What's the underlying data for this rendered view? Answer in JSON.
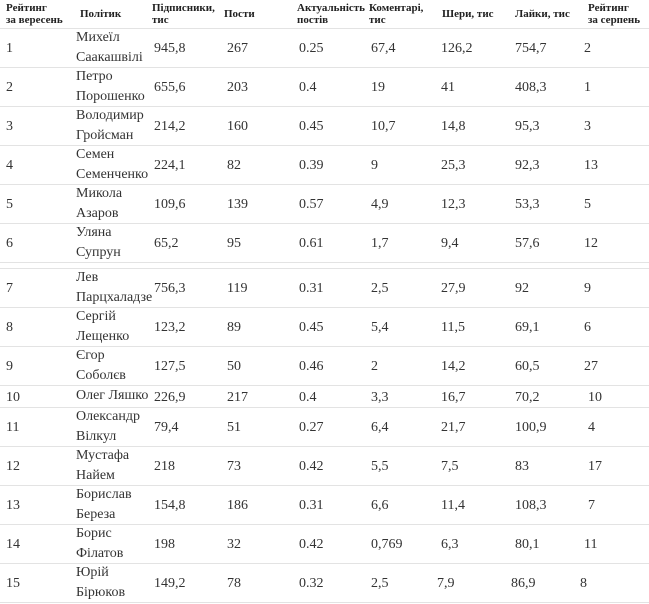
{
  "headers": {
    "rank_sep": [
      "Рейтинг",
      "за вересень"
    ],
    "politician": "Політик",
    "subscribers": [
      "Підписники,",
      "тис"
    ],
    "posts": "Пости",
    "relevance": [
      "Актуальність",
      "постів"
    ],
    "comments": [
      "Коментарі,",
      "тис"
    ],
    "shares": "Шери, тис",
    "likes": "Лайки, тис",
    "rank_aug": [
      "Рейтинг",
      "за серпень"
    ]
  },
  "rows": [
    {
      "rank": "1",
      "name": [
        "Михеїл",
        "Саакашвілі"
      ],
      "subs": "945,8",
      "posts": "267",
      "rel": "0.25",
      "comm": "67,4",
      "shares": "126,2",
      "likes": "754,7",
      "prev": "2"
    },
    {
      "rank": "2",
      "name": [
        "Петро",
        "Порошенко"
      ],
      "subs": "655,6",
      "posts": "203",
      "rel": "0.4",
      "comm": "19",
      "shares": "41",
      "likes": "408,3",
      "prev": "1"
    },
    {
      "rank": "3",
      "name": [
        "Володимир",
        "Гройсман"
      ],
      "subs": "214,2",
      "posts": "160",
      "rel": "0.45",
      "comm": "10,7",
      "shares": "14,8",
      "likes": "95,3",
      "prev": "3"
    },
    {
      "rank": "4",
      "name": [
        "Семен",
        "Семенченко"
      ],
      "subs": "224,1",
      "posts": "82",
      "rel": "0.39",
      "comm": "9",
      "shares": "25,3",
      "likes": "92,3",
      "prev": "13"
    },
    {
      "rank": "5",
      "name": [
        "Микола",
        "Азаров"
      ],
      "subs": "109,6",
      "posts": "139",
      "rel": "0.57",
      "comm": "4,9",
      "shares": "12,3",
      "likes": "53,3",
      "prev": "5"
    },
    {
      "rank": "6",
      "name": [
        "Уляна",
        "Супрун"
      ],
      "subs": "65,2",
      "posts": "95",
      "rel": "0.61",
      "comm": "1,7",
      "shares": "9,4",
      "likes": "57,6",
      "prev": "12"
    },
    {
      "rank": "7",
      "name": [
        "Лев",
        "Парцхаладзе"
      ],
      "subs": "756,3",
      "posts": "119",
      "rel": "0.31",
      "comm": "2,5",
      "shares": "27,9",
      "likes": "92",
      "prev": "9"
    },
    {
      "rank": "8",
      "name": [
        "Сергій",
        "Лещенко"
      ],
      "subs": "123,2",
      "posts": "89",
      "rel": "0.45",
      "comm": "5,4",
      "shares": "11,5",
      "likes": "69,1",
      "prev": "6"
    },
    {
      "rank": "9",
      "name": [
        "Єгор",
        "Соболєв"
      ],
      "subs": "127,5",
      "posts": "50",
      "rel": "0.46",
      "comm": "2",
      "shares": "14,2",
      "likes": "60,5",
      "prev": "27"
    },
    {
      "rank": "10",
      "name": [
        "Олег Ляшко"
      ],
      "subs": "226,9",
      "posts": "217",
      "rel": "0.4",
      "comm": "3,3",
      "shares": "16,7",
      "likes": "70,2",
      "prev": "10"
    },
    {
      "rank": "11",
      "name": [
        "Олександр",
        "Вілкул"
      ],
      "subs": "79,4",
      "posts": "51",
      "rel": "0.27",
      "comm": "6,4",
      "shares": "21,7",
      "likes": "100,9",
      "prev": "4"
    },
    {
      "rank": "12",
      "name": [
        "Мустафа",
        "Найем"
      ],
      "subs": "218",
      "posts": "73",
      "rel": "0.42",
      "comm": "5,5",
      "shares": "7,5",
      "likes": "83",
      "prev": "17"
    },
    {
      "rank": "13",
      "name": [
        "Борислав",
        "Береза"
      ],
      "subs": "154,8",
      "posts": "186",
      "rel": "0.31",
      "comm": "6,6",
      "shares": "11,4",
      "likes": "108,3",
      "prev": "7"
    },
    {
      "rank": "14",
      "name": [
        "Борис",
        "Філатов"
      ],
      "subs": "198",
      "posts": "32",
      "rel": "0.42",
      "comm": "0,769",
      "shares": "6,3",
      "likes": "80,1",
      "prev": "11"
    },
    {
      "rank": "15",
      "name": [
        "Юрій",
        "Бірюков"
      ],
      "subs": "149,2",
      "posts": "78",
      "rel": "0.32",
      "comm": "2,5",
      "shares": "7,9",
      "likes": "86,9",
      "prev": "8"
    }
  ]
}
